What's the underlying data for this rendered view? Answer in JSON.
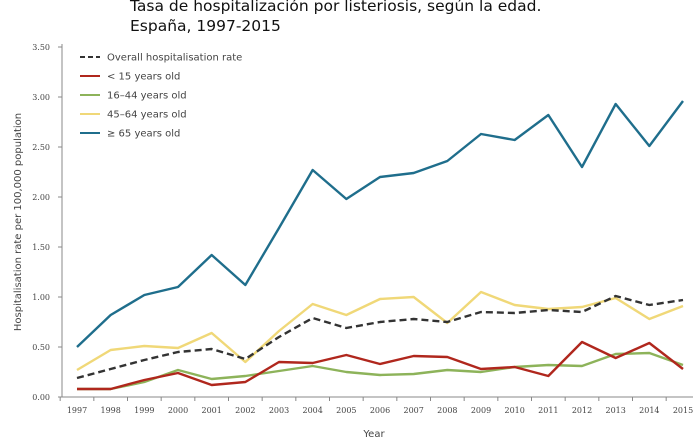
{
  "title_lines": [
    "Tasa de hospitalización por listeriosis, según la edad.",
    "España, 1997-2015"
  ],
  "chart_data": {
    "type": "line",
    "xlabel": "Year",
    "ylabel": "Hospitalisation rate per 100,000 population",
    "ylim": [
      0,
      3.5
    ],
    "yticks": [
      "0.00",
      "0.50",
      "1.00",
      "1.50",
      "2.00",
      "2.50",
      "3.00",
      "3.50"
    ],
    "legend_position": "top-left",
    "grid": false,
    "x": [
      "1997",
      "1998",
      "1999",
      "2000",
      "2001",
      "2002",
      "2003",
      "2004",
      "2005",
      "2006",
      "2007",
      "2008",
      "2009",
      "2010",
      "2011",
      "2012",
      "2013",
      "2014",
      "2015"
    ],
    "series": [
      {
        "name": "Overall hospitalisation rate",
        "color": "#333333",
        "dashed": true,
        "values": [
          0.19,
          0.28,
          0.37,
          0.45,
          0.48,
          0.38,
          0.6,
          0.79,
          0.69,
          0.75,
          0.78,
          0.75,
          0.85,
          0.84,
          0.87,
          0.85,
          1.01,
          0.92,
          0.97
        ]
      },
      {
        "name": "< 15 years old",
        "color": "#b0271d",
        "dashed": false,
        "values": [
          0.08,
          0.08,
          0.17,
          0.24,
          0.12,
          0.15,
          0.35,
          0.34,
          0.42,
          0.33,
          0.41,
          0.4,
          0.28,
          0.3,
          0.21,
          0.55,
          0.39,
          0.54,
          0.28
        ]
      },
      {
        "name": "16–44 years old",
        "color": "#8db35a",
        "dashed": false,
        "values": [
          0.08,
          0.08,
          0.15,
          0.27,
          0.18,
          0.21,
          0.26,
          0.31,
          0.25,
          0.22,
          0.23,
          0.27,
          0.25,
          0.3,
          0.32,
          0.31,
          0.43,
          0.44,
          0.32
        ]
      },
      {
        "name": "45–64 years old",
        "color": "#f0d878",
        "dashed": false,
        "values": [
          0.27,
          0.47,
          0.51,
          0.49,
          0.64,
          0.35,
          0.66,
          0.93,
          0.82,
          0.98,
          1.0,
          0.74,
          1.05,
          0.92,
          0.88,
          0.9,
          0.99,
          0.78,
          0.91
        ]
      },
      {
        "name": "≥ 65 years old",
        "color": "#1f6e8c",
        "dashed": false,
        "values": [
          0.5,
          0.82,
          1.02,
          1.1,
          1.42,
          1.12,
          1.69,
          2.27,
          1.98,
          2.2,
          2.24,
          2.36,
          2.63,
          2.57,
          2.82,
          2.3,
          2.93,
          2.51,
          2.96
        ]
      }
    ]
  }
}
